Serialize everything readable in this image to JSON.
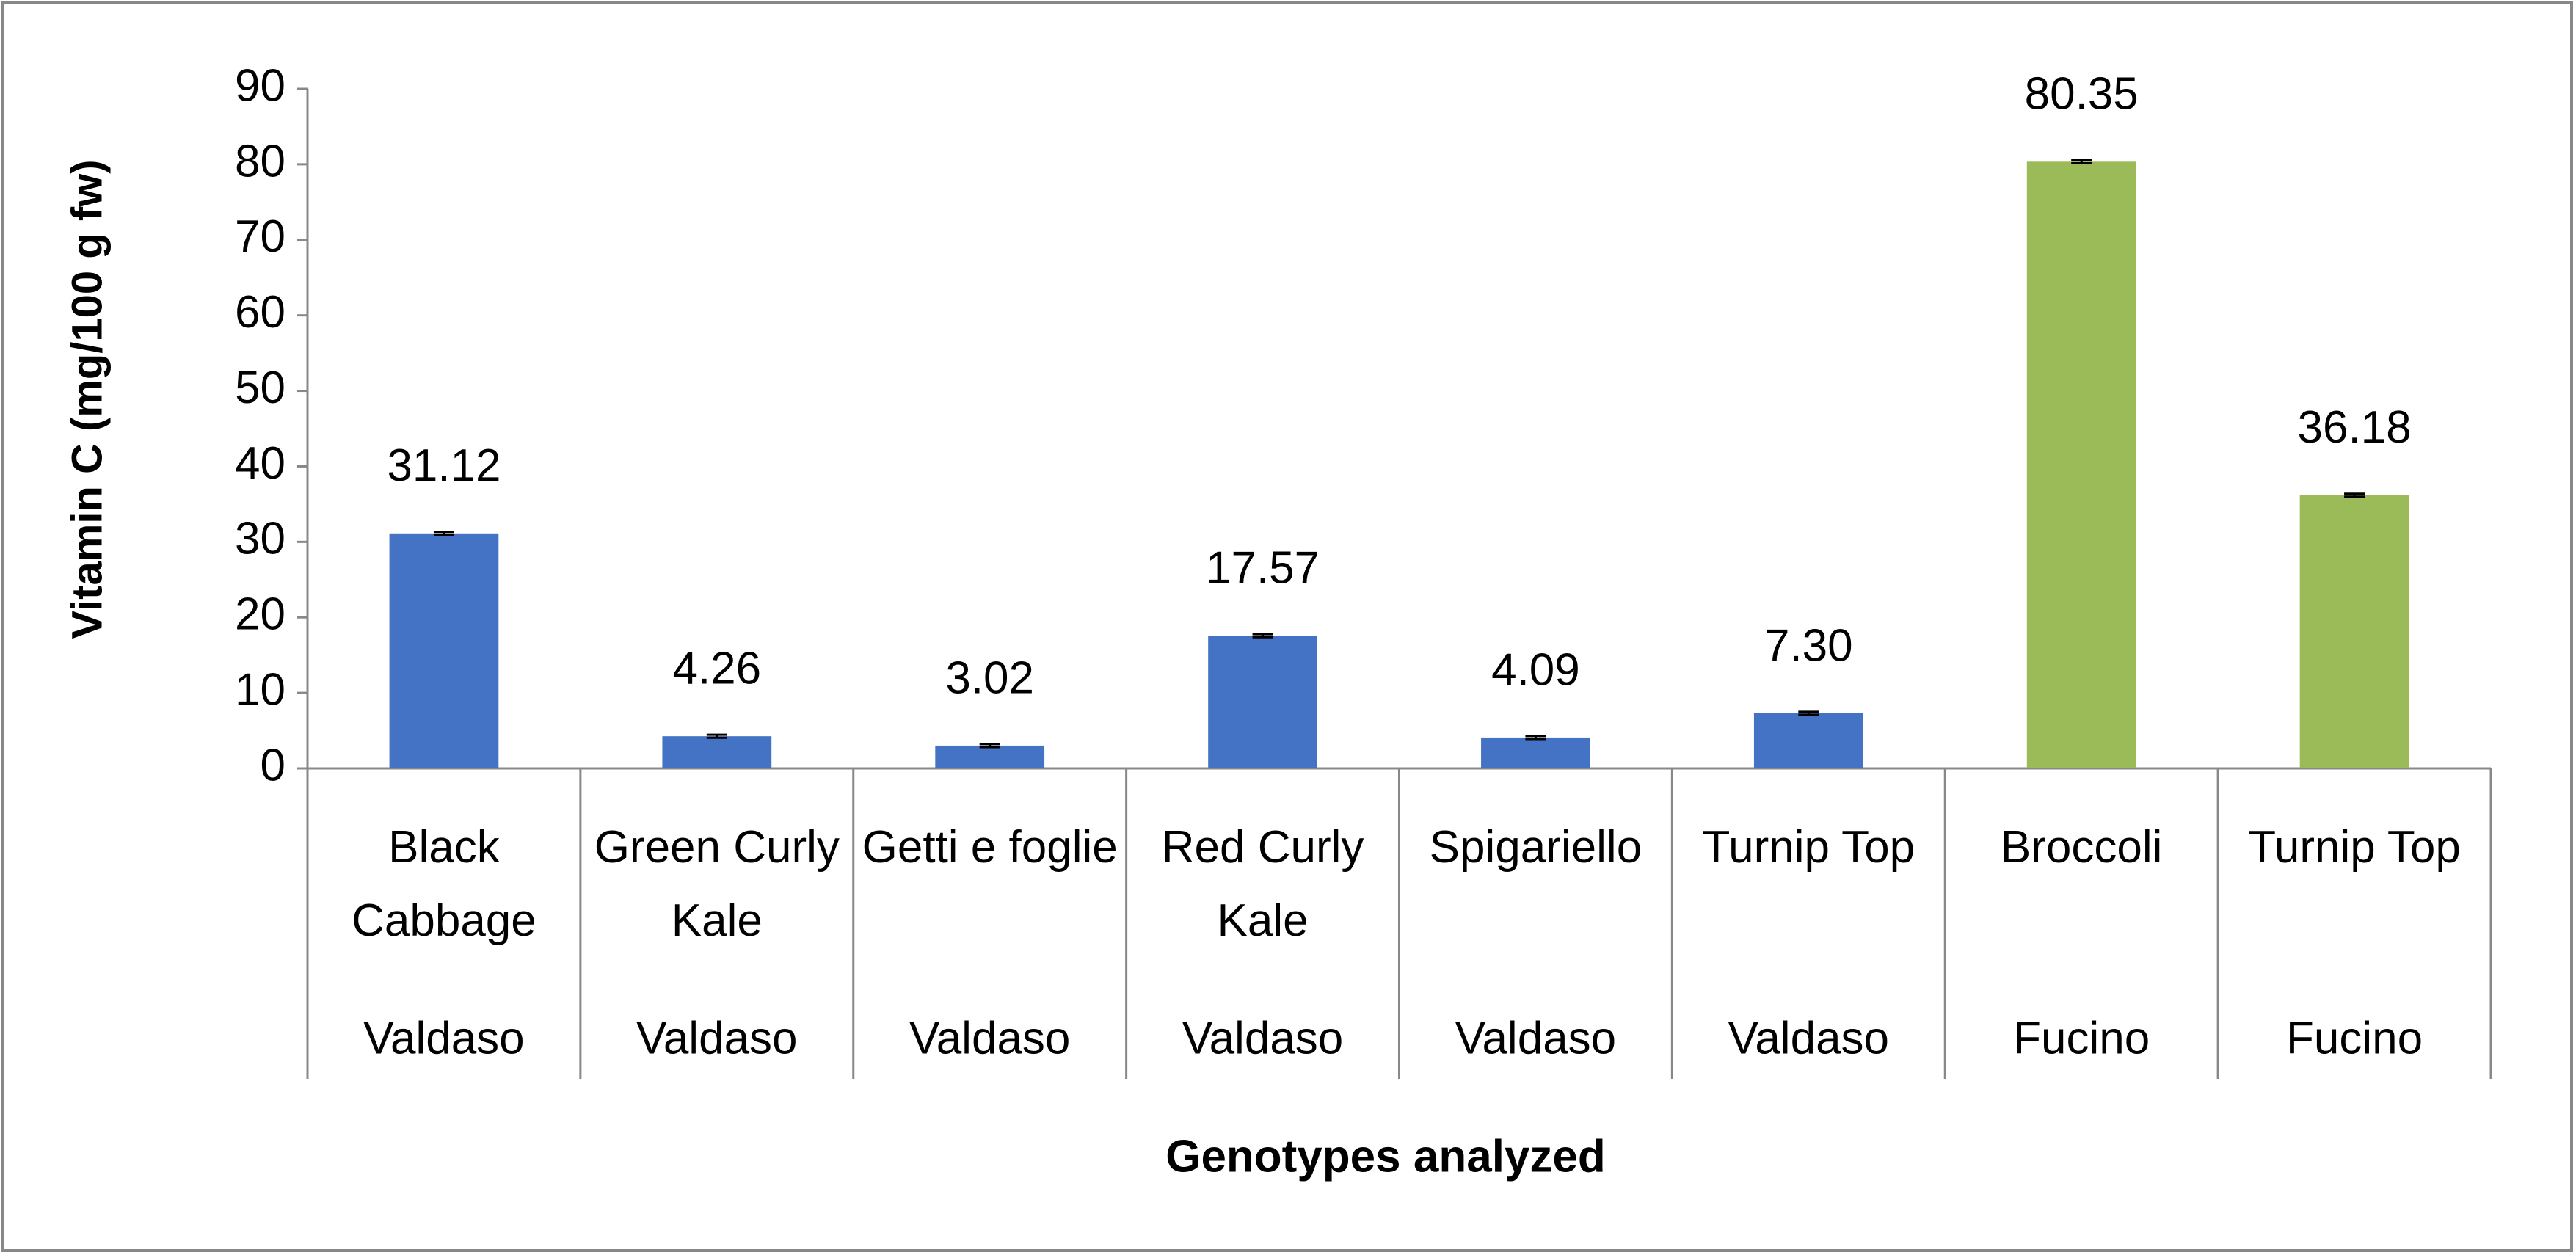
{
  "chart_data": {
    "type": "bar",
    "x_label": "Genotypes analyzed",
    "y_label": "Vitamin C (mg/100 g fw)",
    "categories": [
      "Black Cabbage",
      "Green Curly Kale",
      "Getti e foglie",
      "Red Curly Kale",
      "Spigariello",
      "Turnip Top",
      "Broccoli",
      "Turnip Top"
    ],
    "groups": [
      "Valdaso",
      "Valdaso",
      "Valdaso",
      "Valdaso",
      "Valdaso",
      "Valdaso",
      "Fucino",
      "Fucino"
    ],
    "values": [
      31.12,
      4.26,
      3.02,
      17.57,
      4.09,
      7.3,
      80.35,
      36.18
    ],
    "value_labels": [
      "31.12",
      "4.26",
      "3.02",
      "17.57",
      "4.09",
      "7.30",
      "80.35",
      "36.18"
    ],
    "errors": [
      0.2,
      0.2,
      0.2,
      0.2,
      0.2,
      0.2,
      0.2,
      0.2
    ],
    "colors": [
      "#4472c4",
      "#4472c4",
      "#4472c4",
      "#4472c4",
      "#4472c4",
      "#4472c4",
      "#9bbb59",
      "#9bbb59"
    ],
    "ylim": [
      0,
      90
    ],
    "yticks": [
      0,
      10,
      20,
      30,
      40,
      50,
      60,
      70,
      80,
      90
    ],
    "grid": false
  }
}
